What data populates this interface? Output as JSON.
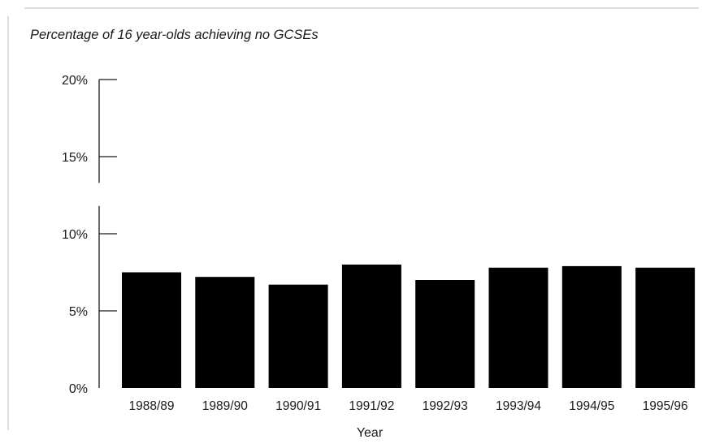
{
  "chart_data": {
    "type": "bar",
    "title": "Percentage of 16 year-olds achieving no GCSEs",
    "xlabel": "Year",
    "ylabel": "",
    "categories": [
      "1988/89",
      "1989/90",
      "1990/91",
      "1991/92",
      "1992/93",
      "1993/94",
      "1994/95",
      "1995/96"
    ],
    "values": [
      7.5,
      7.2,
      6.7,
      8.0,
      7.0,
      7.8,
      7.9,
      7.8
    ],
    "ylim": [
      0,
      20
    ],
    "yticks": [
      {
        "value": 0,
        "label": "0%"
      },
      {
        "value": 5,
        "label": "5%"
      },
      {
        "value": 10,
        "label": "10%"
      },
      {
        "value": 15,
        "label": "15%"
      },
      {
        "value": 20,
        "label": "20%"
      }
    ],
    "bar_color": "#000000",
    "grid": false,
    "legend": "none"
  }
}
